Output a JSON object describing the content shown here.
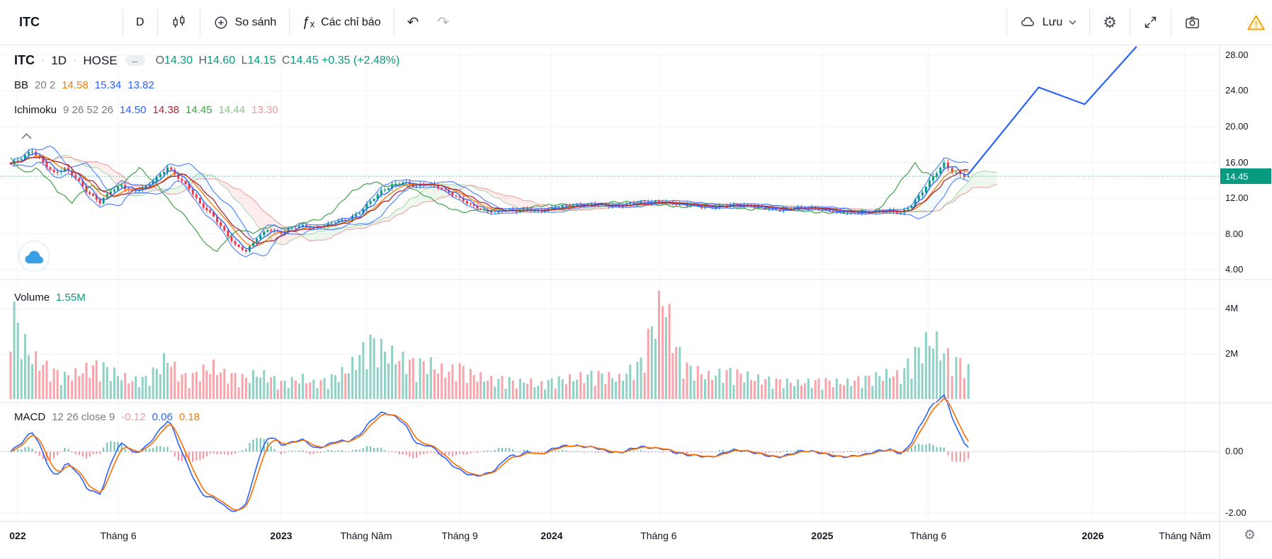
{
  "toolbar": {
    "symbol": "ITC",
    "interval": "D",
    "compare_label": "So sánh",
    "indicators_label": "Các chỉ báo",
    "fx_icon": "ƒₓ",
    "save_label": "Lưu"
  },
  "icons": {
    "undo": "↶",
    "redo": "↷",
    "gear": "⚙",
    "warning": "!",
    "more": "–"
  },
  "chart_data": {
    "type": "candlestick",
    "legend": {
      "symbol": "ITC",
      "dot": "·",
      "interval": "1D",
      "exchange": "HOSE",
      "o_label": "O",
      "o": "14.30",
      "h_label": "H",
      "h": "14.60",
      "l_label": "L",
      "l": "14.15",
      "c_label": "C",
      "c": "14.45",
      "change": "+0.35 (+2.48%)",
      "bb": {
        "name": "BB",
        "params": "20 2",
        "v1": "14.58",
        "v2": "15.34",
        "v3": "13.82"
      },
      "ichimoku": {
        "name": "Ichimoku",
        "params": "9 26 52 26",
        "v1": "14.50",
        "v2": "14.38",
        "v3": "14.45",
        "v4": "14.44",
        "v5": "13.30"
      },
      "volume": {
        "name": "Volume",
        "value": "1.55M"
      },
      "macd": {
        "name": "MACD",
        "params": "12 26 close 9",
        "v1": "-0.12",
        "v2": "0.06",
        "v3": "0.18"
      }
    },
    "anchors": [
      [
        2022.0,
        15.8,
        4.2
      ],
      [
        2022.04,
        16.4,
        2.6
      ],
      [
        2022.08,
        17.2,
        1.8
      ],
      [
        2022.12,
        16.0,
        1.5
      ],
      [
        2022.16,
        14.9,
        1.2
      ],
      [
        2022.2,
        15.4,
        1.0
      ],
      [
        2022.24,
        14.3,
        1.1
      ],
      [
        2022.28,
        12.7,
        1.3
      ],
      [
        2022.33,
        11.5,
        1.5
      ],
      [
        2022.37,
        12.9,
        1.2
      ],
      [
        2022.41,
        13.5,
        1.0
      ],
      [
        2022.45,
        12.7,
        0.8
      ],
      [
        2022.5,
        13.2,
        0.9
      ],
      [
        2022.54,
        14.2,
        1.3
      ],
      [
        2022.58,
        15.5,
        1.8
      ],
      [
        2022.62,
        14.4,
        1.1
      ],
      [
        2022.66,
        13.1,
        0.9
      ],
      [
        2022.7,
        11.3,
        1.2
      ],
      [
        2022.75,
        9.9,
        1.4
      ],
      [
        2022.79,
        8.3,
        1.1
      ],
      [
        2022.83,
        6.8,
        1.0
      ],
      [
        2022.87,
        6.1,
        0.9
      ],
      [
        2022.91,
        7.5,
        1.1
      ],
      [
        2022.95,
        8.4,
        1.0
      ],
      [
        2023.0,
        8.1,
        0.7
      ],
      [
        2023.04,
        8.7,
        0.8
      ],
      [
        2023.08,
        9.0,
        0.9
      ],
      [
        2023.12,
        8.6,
        0.7
      ],
      [
        2023.16,
        8.9,
        0.8
      ],
      [
        2023.2,
        9.3,
        1.0
      ],
      [
        2023.25,
        9.7,
        1.3
      ],
      [
        2023.29,
        10.5,
        1.9
      ],
      [
        2023.33,
        11.7,
        2.5
      ],
      [
        2023.37,
        12.7,
        2.2
      ],
      [
        2023.41,
        13.3,
        1.9
      ],
      [
        2023.45,
        13.8,
        1.7
      ],
      [
        2023.5,
        13.4,
        1.5
      ],
      [
        2023.54,
        13.7,
        1.6
      ],
      [
        2023.58,
        13.2,
        1.3
      ],
      [
        2023.62,
        12.5,
        1.2
      ],
      [
        2023.66,
        11.9,
        1.4
      ],
      [
        2023.7,
        11.3,
        1.1
      ],
      [
        2023.75,
        10.7,
        0.9
      ],
      [
        2023.79,
        10.4,
        0.8
      ],
      [
        2023.83,
        10.7,
        0.9
      ],
      [
        2023.87,
        10.5,
        0.7
      ],
      [
        2023.91,
        10.8,
        0.8
      ],
      [
        2023.95,
        10.6,
        0.6
      ],
      [
        2024.0,
        10.9,
        0.8
      ],
      [
        2024.08,
        11.1,
        0.9
      ],
      [
        2024.16,
        11.4,
        1.1
      ],
      [
        2024.25,
        11.1,
        0.9
      ],
      [
        2024.33,
        11.5,
        1.6
      ],
      [
        2024.41,
        11.7,
        4.6
      ],
      [
        2024.46,
        11.4,
        2.2
      ],
      [
        2024.5,
        11.2,
        1.4
      ],
      [
        2024.58,
        11.0,
        1.0
      ],
      [
        2024.66,
        11.3,
        1.2
      ],
      [
        2024.75,
        11.0,
        0.9
      ],
      [
        2024.83,
        10.8,
        0.8
      ],
      [
        2024.91,
        10.9,
        0.7
      ],
      [
        2025.0,
        10.7,
        0.8
      ],
      [
        2025.08,
        10.5,
        0.7
      ],
      [
        2025.16,
        10.3,
        0.9
      ],
      [
        2025.25,
        10.6,
        1.1
      ],
      [
        2025.29,
        10.4,
        1.0
      ],
      [
        2025.33,
        11.3,
        1.8
      ],
      [
        2025.37,
        12.7,
        2.3
      ],
      [
        2025.41,
        14.3,
        2.6
      ],
      [
        2025.45,
        15.8,
        2.0
      ],
      [
        2025.48,
        15.0,
        1.7
      ],
      [
        2025.51,
        14.7,
        1.6
      ],
      [
        2025.54,
        14.45,
        1.55
      ]
    ],
    "price_axis": {
      "ticks": [
        "28.00",
        "24.00",
        "20.00",
        "16.00",
        "12.00",
        "8.00",
        "4.00"
      ],
      "tick_values": [
        28,
        24,
        20,
        16,
        12,
        8,
        4
      ],
      "current_label": "14.45",
      "current_value": 14.45,
      "ylim": [
        2.9,
        29.1
      ]
    },
    "volume_axis": {
      "ticks": [
        "4M",
        "2M"
      ],
      "tick_values": [
        4,
        2
      ],
      "ylim": [
        0,
        5.3
      ]
    },
    "macd_axis": {
      "ticks": [
        "0.00",
        "-2.00"
      ],
      "tick_values": [
        0,
        -2
      ],
      "ylim": [
        -2.28,
        1.6
      ]
    },
    "time_axis": {
      "labels": [
        {
          "label": "022",
          "t": 2022.026
        },
        {
          "label": "Tháng 6",
          "t": 2022.398
        },
        {
          "label": "2023",
          "t": 2023.0
        },
        {
          "label": "Tháng Năm",
          "t": 2023.314
        },
        {
          "label": "Tháng 9",
          "t": 2023.66
        },
        {
          "label": "2024",
          "t": 2024.0
        },
        {
          "label": "Tháng 6",
          "t": 2024.395
        },
        {
          "label": "2025",
          "t": 2025.0
        },
        {
          "label": "Tháng 6",
          "t": 2025.392
        },
        {
          "label": "2026",
          "t": 2026.0
        },
        {
          "label": "Tháng Năm",
          "t": 2026.34
        }
      ]
    },
    "trendline": {
      "points": [
        [
          2025.54,
          14.7
        ],
        [
          2025.8,
          24.4
        ],
        [
          2025.97,
          22.5
        ],
        [
          2026.16,
          28.9
        ]
      ],
      "color": "#2962FF"
    },
    "colors": {
      "up": "#089981",
      "down": "#F23645",
      "bb_basis": "#F57C00",
      "bb_band": "#2962FF",
      "tenkan": "#2962FF",
      "kijun": "#B22833",
      "chikou": "#43A047",
      "senkou_a": "#A5D6A7",
      "senkou_b": "#EF9A9A",
      "cloud_up": "rgba(76,175,80,0.10)",
      "cloud_down": "rgba(239,83,80,0.10)",
      "macd_line": "#2962FF",
      "signal_line": "#FF6D00",
      "grid": "#f0f3fa",
      "separator": "#e0e3eb"
    }
  }
}
